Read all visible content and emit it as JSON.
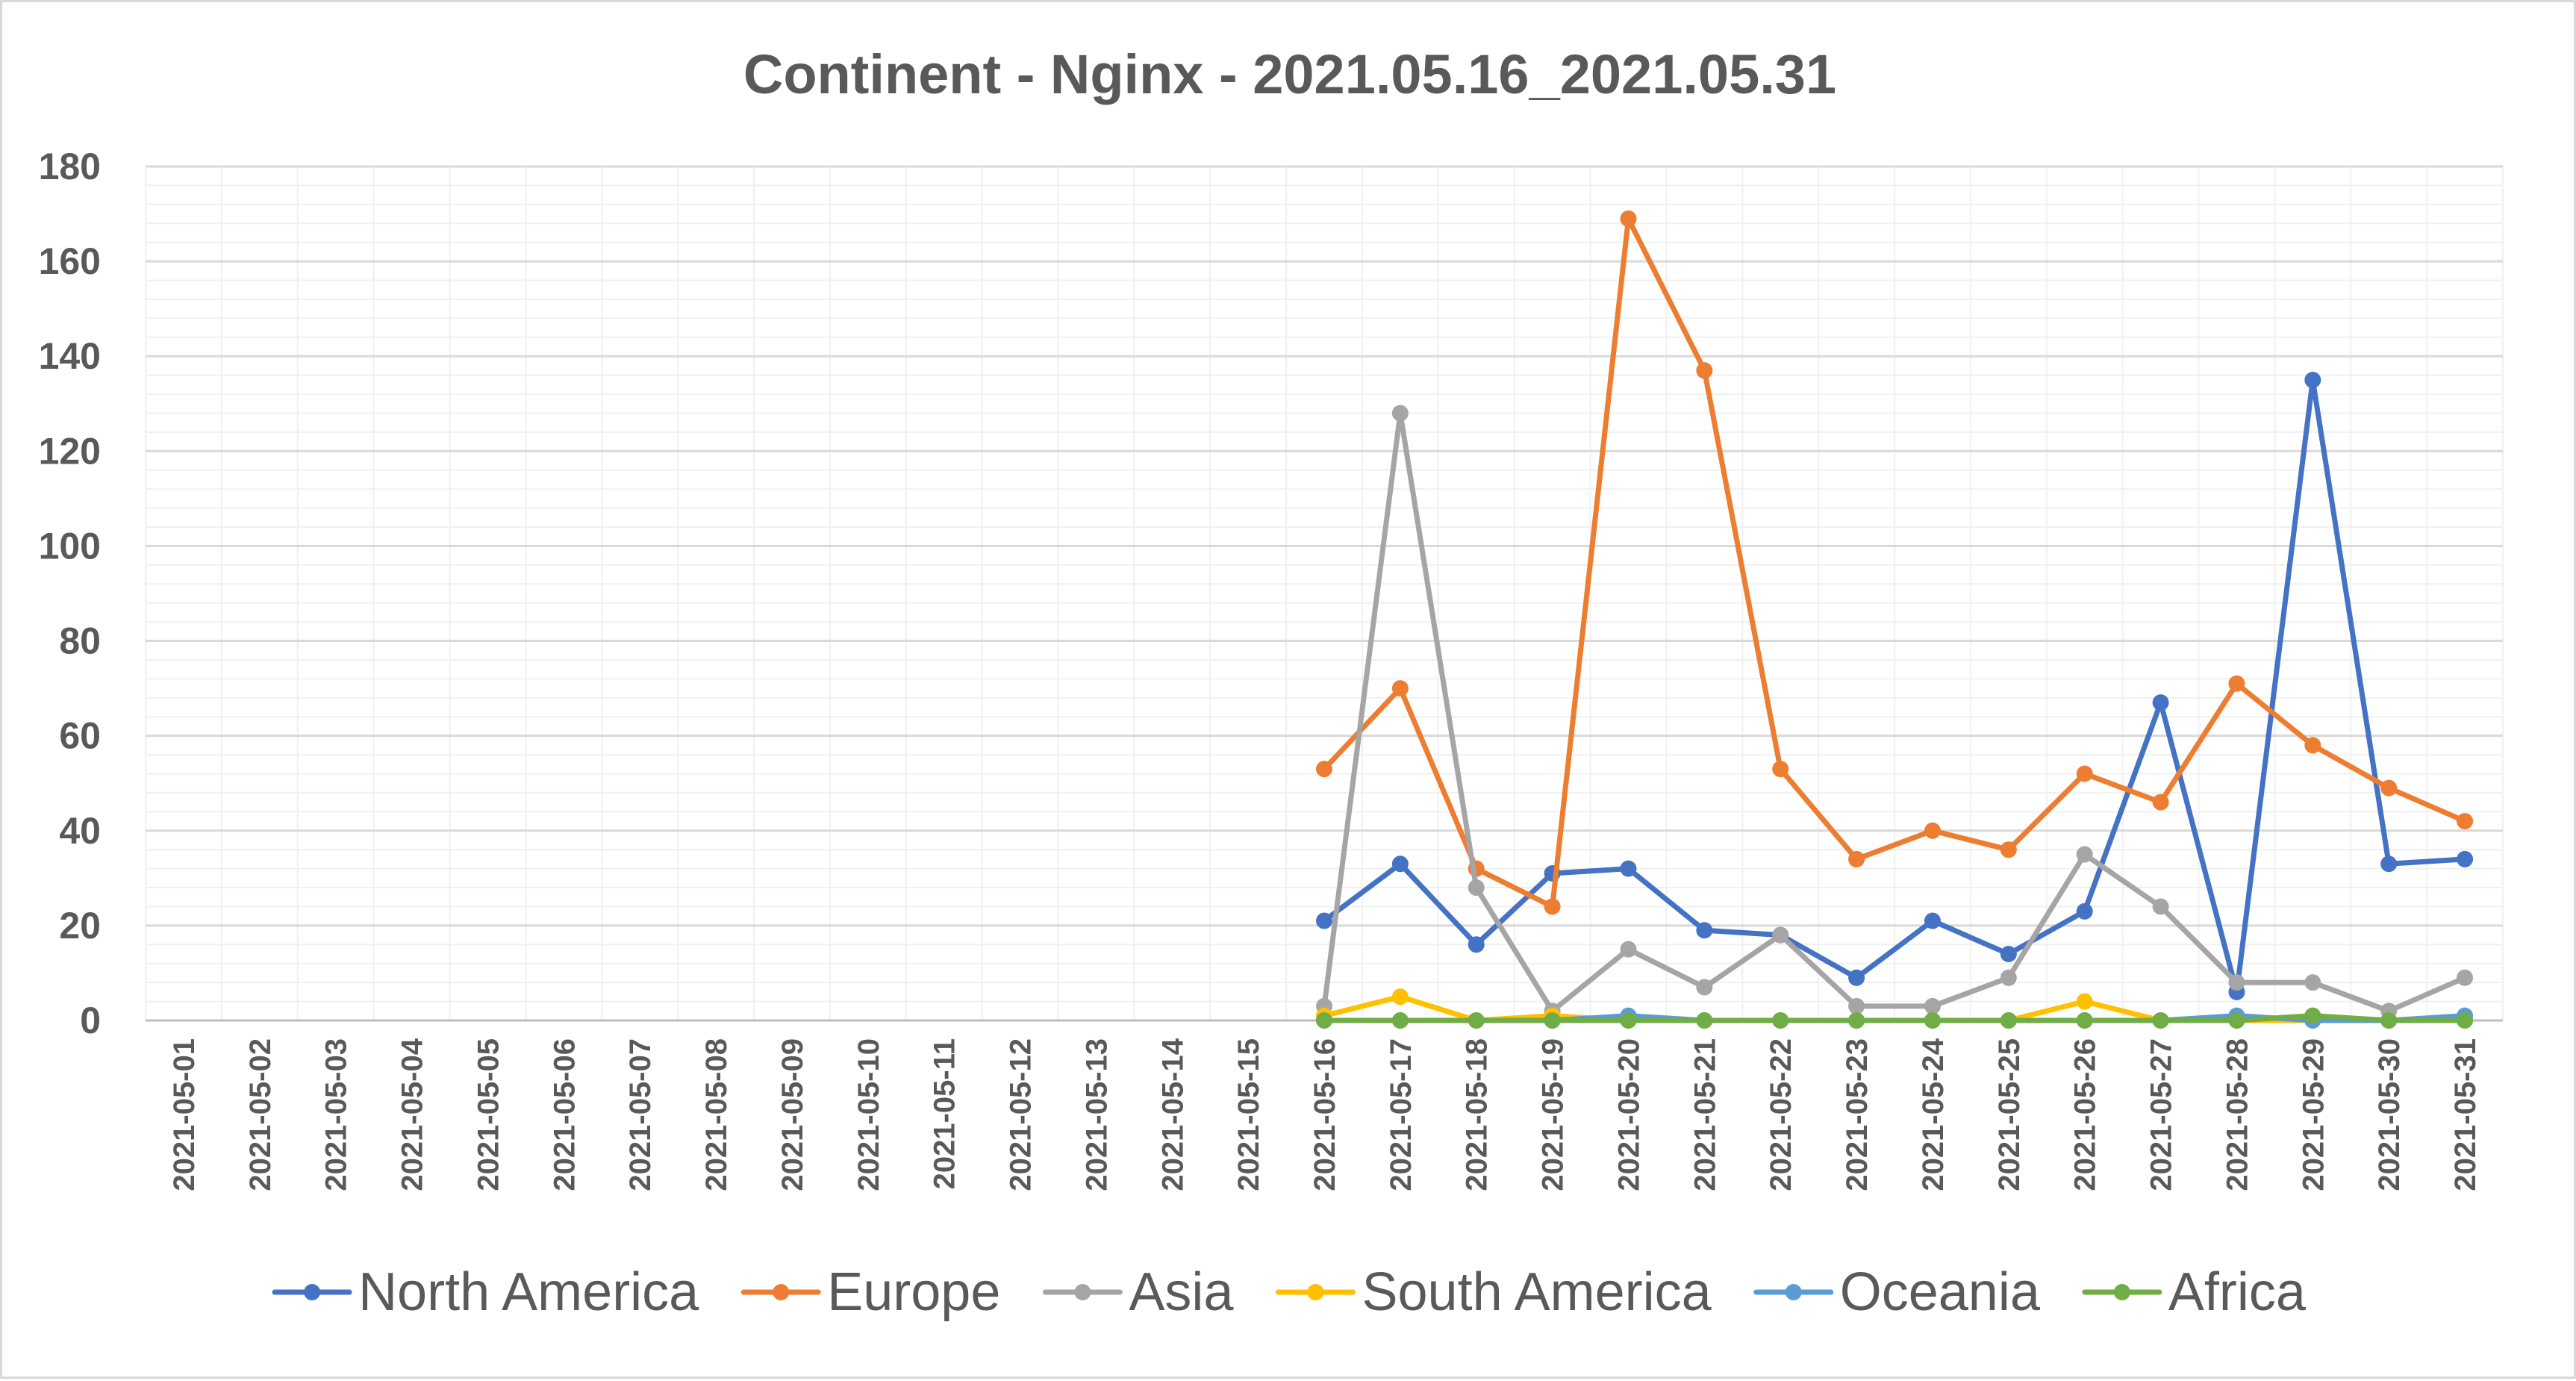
{
  "chart_data": {
    "type": "line",
    "title": "Continent - Nginx - 2021.05.16_2021.05.31",
    "xlabel": "",
    "ylabel": "",
    "ylim": [
      0,
      180
    ],
    "y_ticks": [
      "0",
      "20",
      "40",
      "60",
      "80",
      "100",
      "120",
      "140",
      "160",
      "180"
    ],
    "grid": true,
    "legend_position": "bottom",
    "x": [
      "2021-05-01",
      "2021-05-02",
      "2021-05-03",
      "2021-05-04",
      "2021-05-05",
      "2021-05-06",
      "2021-05-07",
      "2021-05-08",
      "2021-05-09",
      "2021-05-10",
      "2021-05-11",
      "2021-05-12",
      "2021-05-13",
      "2021-05-14",
      "2021-05-15",
      "2021-05-16",
      "2021-05-17",
      "2021-05-18",
      "2021-05-19",
      "2021-05-20",
      "2021-05-21",
      "2021-05-22",
      "2021-05-23",
      "2021-05-24",
      "2021-05-25",
      "2021-05-26",
      "2021-05-27",
      "2021-05-28",
      "2021-05-29",
      "2021-05-30",
      "2021-05-31"
    ],
    "series": [
      {
        "name": "North America",
        "color": "#4472c4",
        "values": [
          null,
          null,
          null,
          null,
          null,
          null,
          null,
          null,
          null,
          null,
          null,
          null,
          null,
          null,
          null,
          21,
          33,
          16,
          31,
          32,
          19,
          18,
          9,
          21,
          14,
          23,
          67,
          6,
          135,
          33,
          34
        ]
      },
      {
        "name": "Europe",
        "color": "#ed7d31",
        "values": [
          null,
          null,
          null,
          null,
          null,
          null,
          null,
          null,
          null,
          null,
          null,
          null,
          null,
          null,
          null,
          53,
          70,
          32,
          24,
          169,
          137,
          53,
          34,
          40,
          36,
          52,
          46,
          71,
          58,
          49,
          42
        ]
      },
      {
        "name": "Asia",
        "color": "#a5a5a5",
        "values": [
          null,
          null,
          null,
          null,
          null,
          null,
          null,
          null,
          null,
          null,
          null,
          null,
          null,
          null,
          null,
          3,
          128,
          28,
          2,
          15,
          7,
          18,
          3,
          3,
          9,
          35,
          24,
          8,
          8,
          2,
          9
        ]
      },
      {
        "name": "South America",
        "color": "#ffc000",
        "values": [
          null,
          null,
          null,
          null,
          null,
          null,
          null,
          null,
          null,
          null,
          null,
          null,
          null,
          null,
          null,
          1,
          5,
          0,
          1,
          0,
          0,
          0,
          0,
          0,
          0,
          4,
          0,
          0,
          0,
          0,
          0
        ]
      },
      {
        "name": "Oceania",
        "color": "#5b9bd5",
        "values": [
          null,
          null,
          null,
          null,
          null,
          null,
          null,
          null,
          null,
          null,
          null,
          null,
          null,
          null,
          null,
          0,
          0,
          0,
          0,
          1,
          0,
          0,
          0,
          0,
          0,
          0,
          0,
          1,
          0,
          0,
          1
        ]
      },
      {
        "name": "Africa",
        "color": "#70ad47",
        "values": [
          null,
          null,
          null,
          null,
          null,
          null,
          null,
          null,
          null,
          null,
          null,
          null,
          null,
          null,
          null,
          0,
          0,
          0,
          0,
          0,
          0,
          0,
          0,
          0,
          0,
          0,
          0,
          0,
          1,
          0,
          0
        ]
      }
    ]
  }
}
